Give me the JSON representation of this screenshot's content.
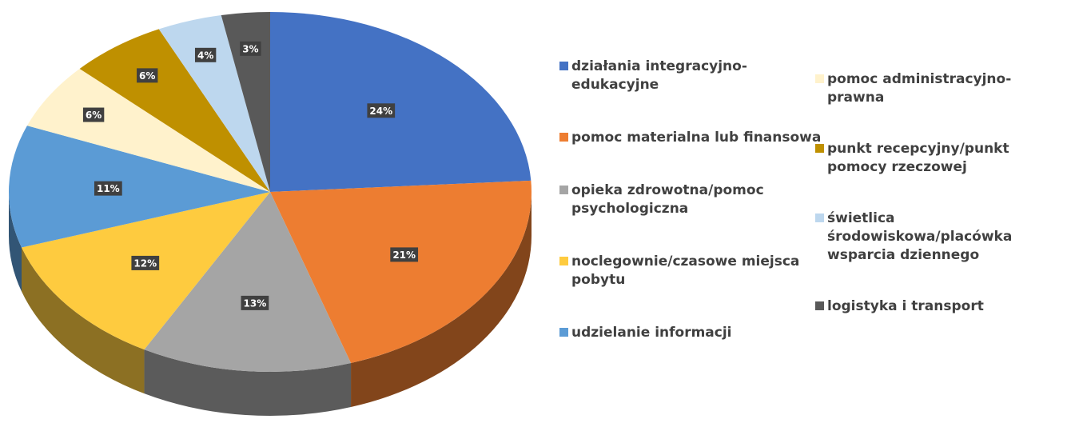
{
  "chart_data": {
    "type": "pie",
    "categories": [
      "działania integracyjno-edukacyjne",
      "pomoc materialna lub finansowa",
      "opieka zdrowotna/pomoc psychologiczna",
      "noclegownie/czasowe miejsca pobytu",
      "udzielanie informacji",
      "pomoc administracyjno-prawna",
      "punkt recepcyjny/punkt pomocy rzeczowej",
      "świetlica środowiskowa/placówka wsparcia dziennego",
      "logistyka i transport"
    ],
    "values": [
      24,
      21,
      13,
      12,
      11,
      6,
      6,
      4,
      3
    ],
    "value_labels": [
      "24%",
      "21%",
      "13%",
      "12%",
      "11%",
      "6%",
      "6%",
      "4%",
      "3%"
    ],
    "colors": [
      "#4472c4",
      "#ed7d31",
      "#a5a5a5",
      "#fecb3f",
      "#5b9bd5",
      "#fff2cc",
      "#bf9000",
      "#bdd7ee",
      "#595959"
    ],
    "legend": "right"
  }
}
